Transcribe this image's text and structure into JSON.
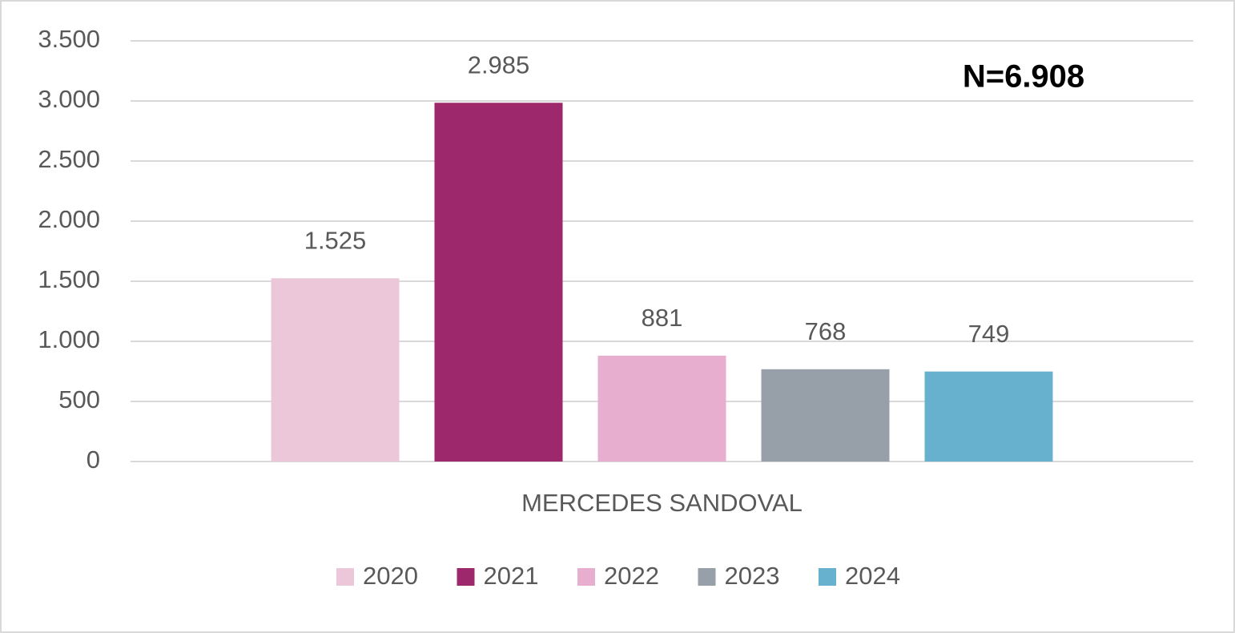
{
  "chart_data": {
    "type": "bar",
    "categories": [
      "MERCEDES SANDOVAL"
    ],
    "series": [
      {
        "name": "2020",
        "color": "#ecc7da",
        "values": [
          1525
        ],
        "value_labels": [
          "1.525"
        ]
      },
      {
        "name": "2021",
        "color": "#9d286b",
        "values": [
          2985
        ],
        "value_labels": [
          "2.985"
        ]
      },
      {
        "name": "2022",
        "color": "#e8aecf",
        "values": [
          881
        ],
        "value_labels": [
          "881"
        ]
      },
      {
        "name": "2023",
        "color": "#97a0a9",
        "values": [
          768
        ],
        "value_labels": [
          "768"
        ]
      },
      {
        "name": "2024",
        "color": "#67b1ce",
        "values": [
          749
        ],
        "value_labels": [
          "749"
        ]
      }
    ],
    "annotation": "N=6.908",
    "ylim": [
      0,
      3500
    ],
    "yticks": [
      0,
      500,
      {
        "value": 1000,
        "label": "1.000"
      },
      {
        "value": 1500,
        "label": "1.500"
      },
      {
        "value": 2000,
        "label": "2.000"
      },
      {
        "value": 2500,
        "label": "2.500"
      },
      {
        "value": 3000,
        "label": "3.000"
      },
      {
        "value": 3500,
        "label": "3.500"
      }
    ],
    "grid": true,
    "legend": "bottom"
  }
}
